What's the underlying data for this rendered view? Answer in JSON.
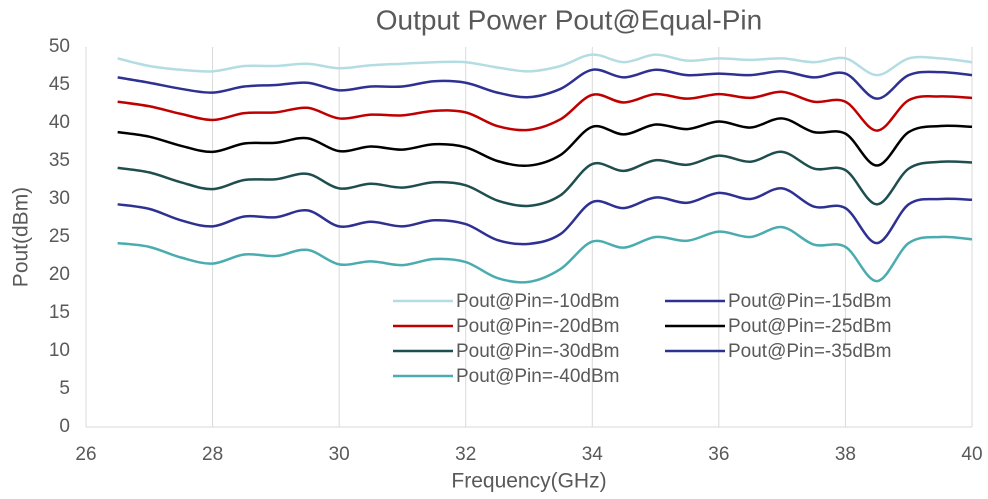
{
  "chart_data": {
    "type": "line",
    "title": "Output Power Pout@Equal-Pin",
    "x_label": "Frequency(GHz)",
    "y_label": "Pout(dBm)",
    "x": [
      26.5,
      27,
      27.5,
      28,
      28.5,
      29,
      29.5,
      30,
      30.5,
      31,
      31.5,
      32,
      32.5,
      33,
      33.5,
      34,
      34.5,
      35,
      35.5,
      36,
      36.5,
      37,
      37.5,
      38,
      38.5,
      39,
      39.5,
      40
    ],
    "series": [
      {
        "name": "Pout@Pin=-10dBm",
        "color": "#b4dde3",
        "values": [
          48.5,
          47.5,
          47,
          46.8,
          47.5,
          47.5,
          47.8,
          47.2,
          47.6,
          47.8,
          48,
          48,
          47.3,
          46.8,
          47.5,
          49,
          48,
          49,
          48.2,
          48.5,
          48.3,
          48.5,
          48,
          48.5,
          46.3,
          48.5,
          48.5,
          48
        ]
      },
      {
        "name": "Pout@Pin=-15dBm",
        "color": "#2e3192",
        "values": [
          46,
          45.3,
          44.5,
          44,
          44.8,
          45,
          45.3,
          44.3,
          44.8,
          44.8,
          45.5,
          45.3,
          44,
          43.4,
          44.5,
          47,
          46,
          47,
          46.3,
          46.5,
          46.3,
          46.8,
          46,
          46.5,
          43.2,
          46.3,
          46.7,
          46.3
        ]
      },
      {
        "name": "Pout@Pin=-20dBm",
        "color": "#c00000",
        "values": [
          42.8,
          42.2,
          41.2,
          40.4,
          41.3,
          41.4,
          42,
          40.6,
          41.1,
          41,
          41.6,
          41.4,
          39.6,
          39.1,
          40.5,
          43.7,
          42.7,
          43.8,
          43.2,
          43.8,
          43.3,
          44.1,
          42.8,
          42.8,
          39,
          43,
          43.5,
          43.3
        ]
      },
      {
        "name": "Pout@Pin=-25dBm",
        "color": "#000000",
        "values": [
          38.8,
          38.2,
          37,
          36.2,
          37.3,
          37.4,
          38,
          36.3,
          36.9,
          36.5,
          37.2,
          36.8,
          35,
          34.4,
          35.8,
          39.5,
          38.5,
          39.8,
          39.2,
          40.2,
          39.4,
          40.6,
          38.8,
          38.6,
          34.4,
          38.8,
          39.6,
          39.5
        ]
      },
      {
        "name": "Pout@Pin=-30dBm",
        "color": "#1f4e4f",
        "values": [
          34.1,
          33.5,
          32.2,
          31.3,
          32.5,
          32.6,
          33.3,
          31.4,
          32,
          31.5,
          32.2,
          31.8,
          29.8,
          29.1,
          30.5,
          34.6,
          33.7,
          35.1,
          34.5,
          35.7,
          34.9,
          36.2,
          34,
          33.8,
          29.3,
          34,
          34.9,
          34.8
        ]
      },
      {
        "name": "Pout@Pin=-35dBm",
        "color": "#2e3192",
        "values": [
          29.3,
          28.7,
          27.2,
          26.4,
          27.7,
          27.6,
          28.5,
          26.4,
          27,
          26.4,
          27.2,
          26.7,
          24.6,
          24.1,
          25.4,
          29.6,
          28.8,
          30.2,
          29.5,
          30.8,
          30,
          31.4,
          29,
          28.8,
          24.2,
          29.3,
          30,
          29.9
        ]
      },
      {
        "name": "Pout@Pin=-40dBm",
        "color": "#4bacb0",
        "values": [
          24.2,
          23.7,
          22.3,
          21.5,
          22.7,
          22.5,
          23.3,
          21.4,
          21.8,
          21.3,
          22.1,
          21.7,
          19.6,
          19.1,
          20.8,
          24.4,
          23.6,
          25,
          24.5,
          25.7,
          25,
          26.3,
          24,
          23.7,
          19.2,
          24.2,
          25,
          24.7
        ]
      }
    ],
    "xlim": [
      26,
      40
    ],
    "xticks": [
      26,
      28,
      30,
      32,
      34,
      36,
      38,
      40
    ],
    "ylim": [
      0,
      50
    ],
    "yticks": [
      0,
      5,
      10,
      15,
      20,
      25,
      30,
      35,
      40,
      45,
      50
    ],
    "grid": "x",
    "legend": "bottom-right"
  }
}
